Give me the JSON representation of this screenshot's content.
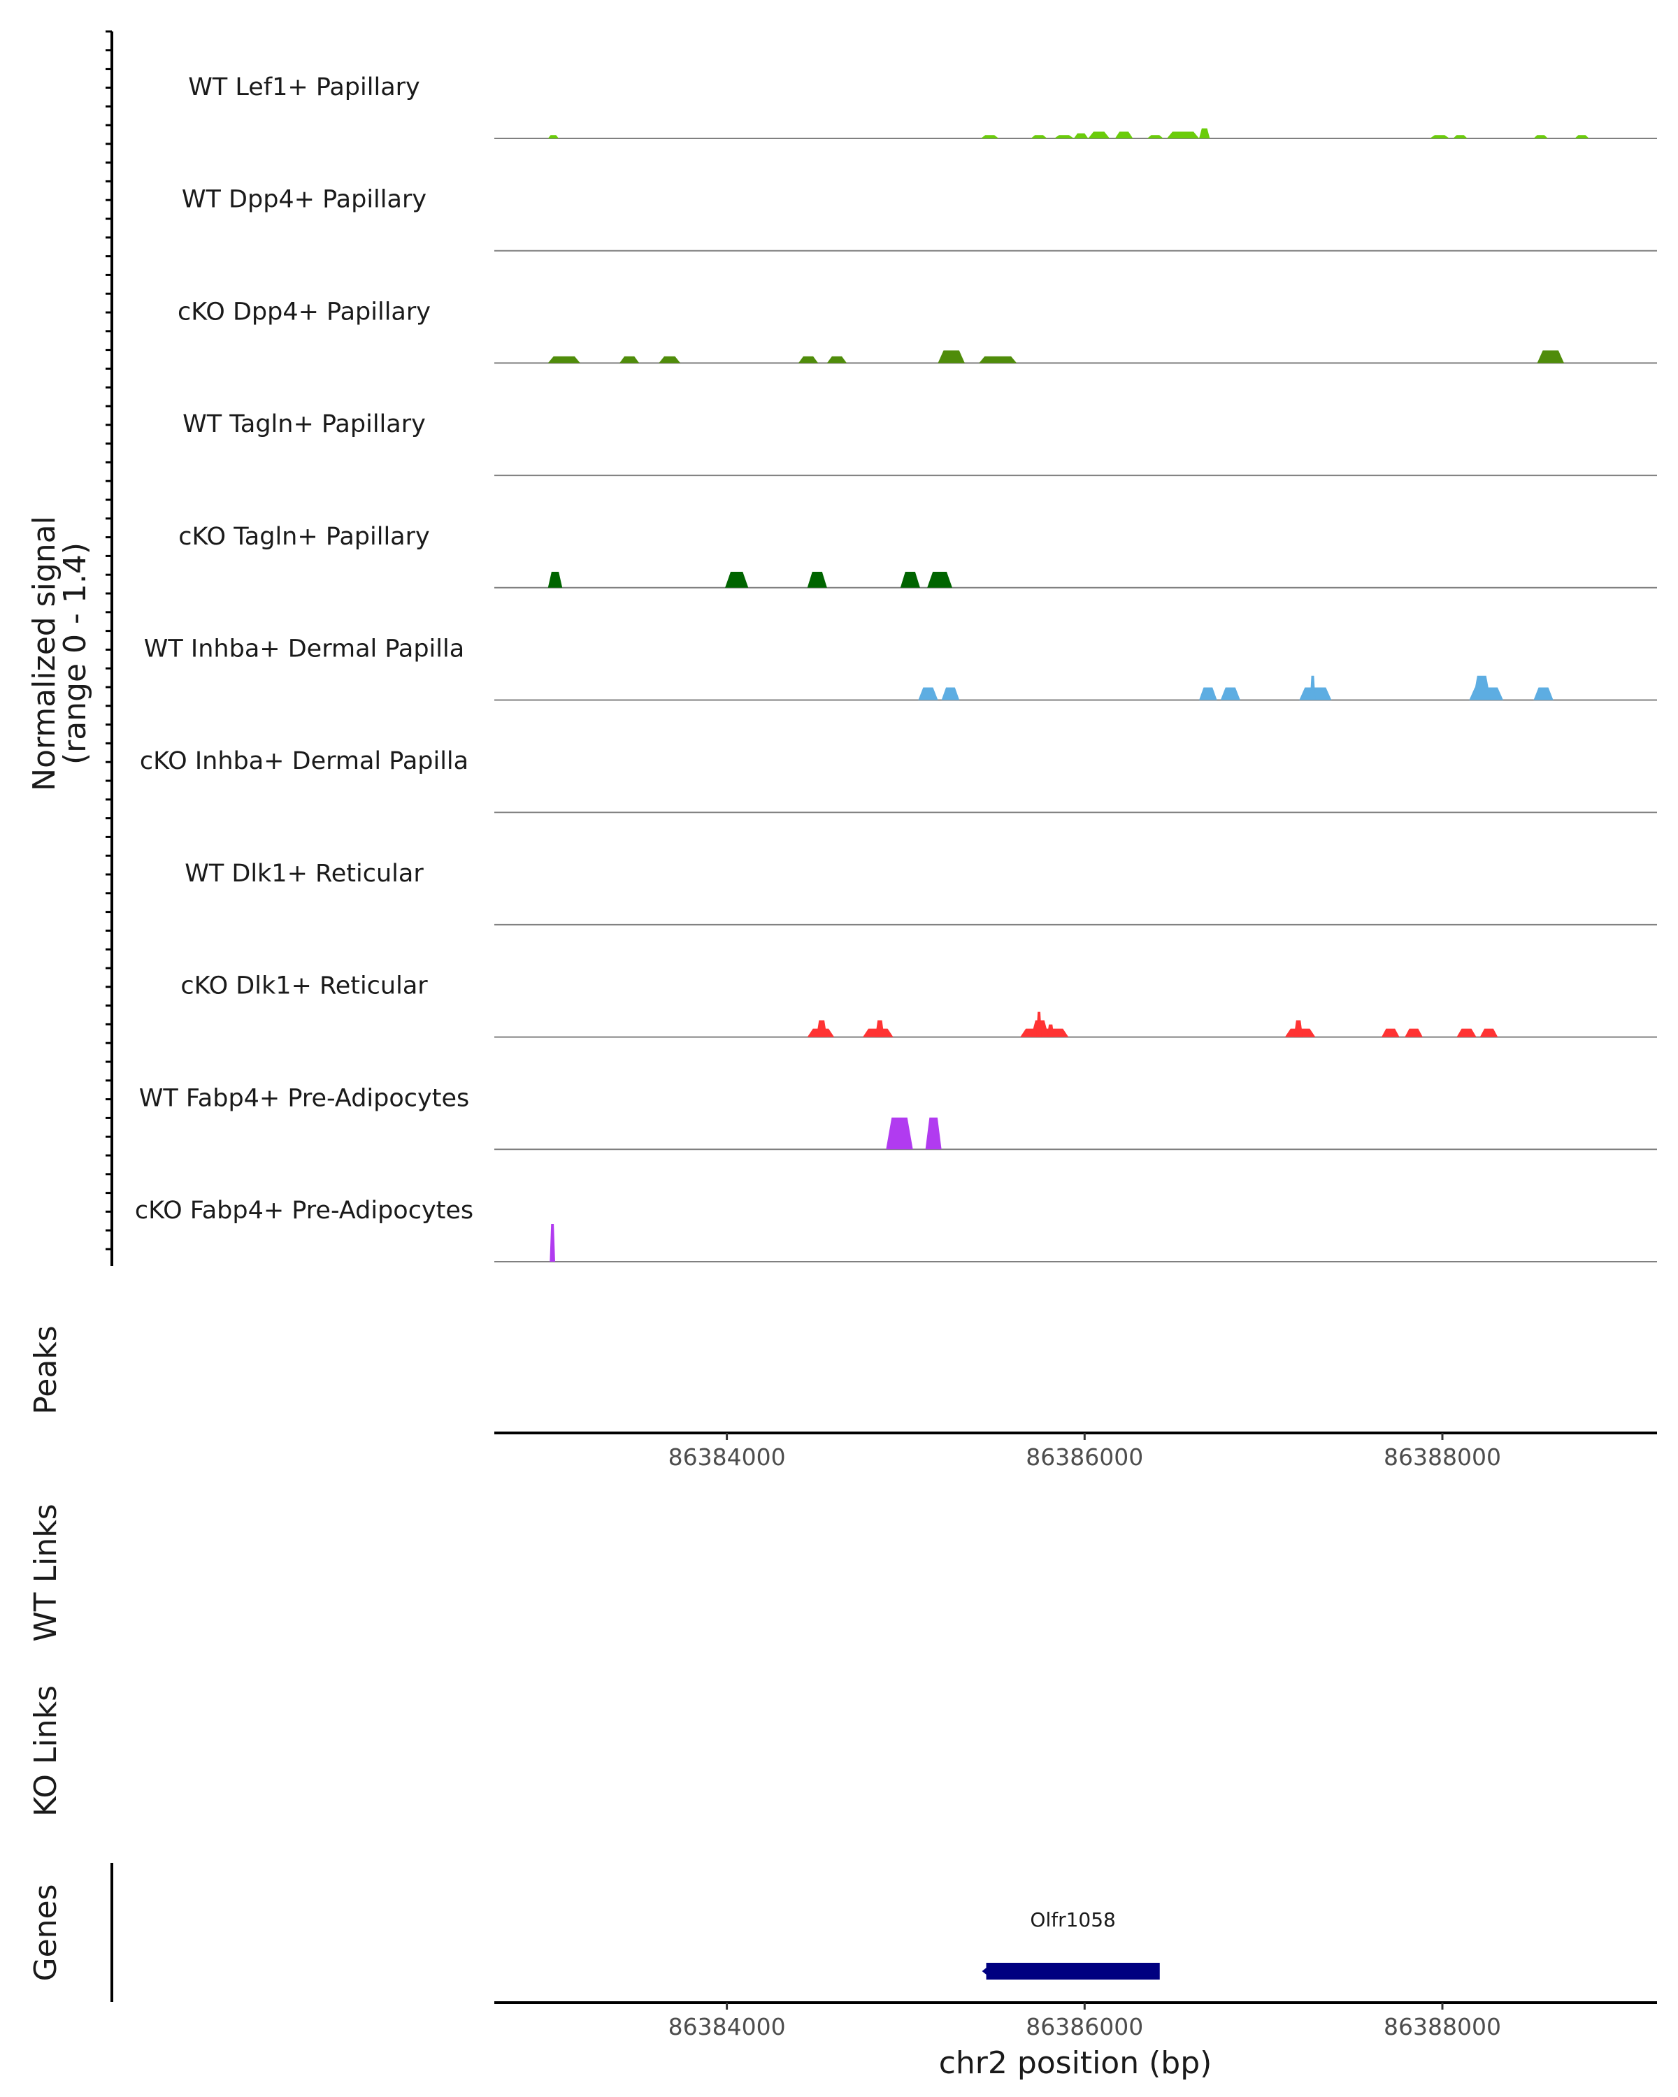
{
  "chart_data": {
    "type": "area",
    "title": "",
    "ylabel": "Normalized signal\n(range 0 - 1.4)",
    "ylim": [
      0,
      1.4
    ],
    "xlabel": "chr2 position (bp)",
    "xlim": [
      86382700,
      86389200
    ],
    "xticks": [
      86384000,
      86386000,
      86388000
    ],
    "xtick_labels": [
      "86384000",
      "86386000",
      "86388000"
    ],
    "tracks": [
      {
        "name": "WT Lef1+ Papillary",
        "color": "#6ACC0A",
        "peaks": [
          {
            "start": 86383000,
            "end": 86383060,
            "height": 0.4
          },
          {
            "start": 86385420,
            "end": 86385520,
            "height": 0.4
          },
          {
            "start": 86385700,
            "end": 86385790,
            "height": 0.4
          },
          {
            "start": 86385830,
            "end": 86385940,
            "height": 0.4
          },
          {
            "start": 86385940,
            "end": 86386020,
            "height": 0.6
          },
          {
            "start": 86386020,
            "end": 86386140,
            "height": 0.8
          },
          {
            "start": 86386170,
            "end": 86386270,
            "height": 0.8
          },
          {
            "start": 86386350,
            "end": 86386440,
            "height": 0.4
          },
          {
            "start": 86386460,
            "end": 86386640,
            "height": 0.8
          },
          {
            "start": 86386640,
            "end": 86386700,
            "height": 1.2
          },
          {
            "start": 86387930,
            "end": 86388040,
            "height": 0.4
          },
          {
            "start": 86388060,
            "end": 86388140,
            "height": 0.4
          },
          {
            "start": 86388510,
            "end": 86388590,
            "height": 0.4
          },
          {
            "start": 86388740,
            "end": 86388820,
            "height": 0.4
          }
        ]
      },
      {
        "name": "WT Dpp4+ Papillary",
        "color": "#4F8C0A",
        "peaks": []
      },
      {
        "name": "cKO Dpp4+ Papillary",
        "color": "#4F8C0A",
        "peaks": [
          {
            "start": 86383000,
            "end": 86383180,
            "height": 0.8
          },
          {
            "start": 86383400,
            "end": 86383510,
            "height": 0.8
          },
          {
            "start": 86383620,
            "end": 86383740,
            "height": 0.8
          },
          {
            "start": 86384400,
            "end": 86384510,
            "height": 0.8
          },
          {
            "start": 86384560,
            "end": 86384670,
            "height": 0.8
          },
          {
            "start": 86385180,
            "end": 86385330,
            "height": 1.5
          },
          {
            "start": 86385410,
            "end": 86385620,
            "height": 0.8
          },
          {
            "start": 86388530,
            "end": 86388680,
            "height": 1.5
          }
        ]
      },
      {
        "name": "WT Tagln+ Papillary",
        "color": "#006400",
        "peaks": []
      },
      {
        "name": "cKO Tagln+ Papillary",
        "color": "#006400",
        "peaks": [
          {
            "start": 86383000,
            "end": 86383080,
            "height": 1.9
          },
          {
            "start": 86383990,
            "end": 86384120,
            "height": 1.9
          },
          {
            "start": 86384450,
            "end": 86384560,
            "height": 1.9
          },
          {
            "start": 86384970,
            "end": 86385080,
            "height": 1.9
          },
          {
            "start": 86385120,
            "end": 86385260,
            "height": 1.9
          }
        ]
      },
      {
        "name": "WT Inhba+ Dermal Papilla",
        "color": "#5DADE2",
        "peaks": [
          {
            "start": 86385070,
            "end": 86385180,
            "height": 1.5
          },
          {
            "start": 86385200,
            "end": 86385300,
            "height": 1.5
          },
          {
            "start": 86386640,
            "end": 86386740,
            "height": 1.5
          },
          {
            "start": 86386760,
            "end": 86386870,
            "height": 1.5
          },
          {
            "start": 86387200,
            "end": 86387380,
            "height": 1.5
          },
          {
            "start": 86387260,
            "end": 86387290,
            "height": 2.9
          },
          {
            "start": 86388150,
            "end": 86388340,
            "height": 1.5
          },
          {
            "start": 86388170,
            "end": 86388270,
            "height": 2.9
          },
          {
            "start": 86388510,
            "end": 86388620,
            "height": 1.5
          }
        ]
      },
      {
        "name": "cKO Inhba+ Dermal Papilla",
        "color": "#5DADE2",
        "peaks": []
      },
      {
        "name": "WT Dlk1+ Reticular",
        "color": "#FF3333",
        "peaks": []
      },
      {
        "name": "cKO Dlk1+ Reticular",
        "color": "#FF3333",
        "peaks": [
          {
            "start": 86384450,
            "end": 86384600,
            "height": 1.0
          },
          {
            "start": 86384500,
            "end": 86384560,
            "height": 2.0
          },
          {
            "start": 86384760,
            "end": 86384930,
            "height": 1.0
          },
          {
            "start": 86384830,
            "end": 86384880,
            "height": 2.0
          },
          {
            "start": 86385640,
            "end": 86385910,
            "height": 1.0
          },
          {
            "start": 86385700,
            "end": 86385800,
            "height": 2.0
          },
          {
            "start": 86385730,
            "end": 86385760,
            "height": 3.0
          },
          {
            "start": 86385790,
            "end": 86385830,
            "height": 1.5
          },
          {
            "start": 86387120,
            "end": 86387290,
            "height": 1.0
          },
          {
            "start": 86387170,
            "end": 86387220,
            "height": 2.0
          },
          {
            "start": 86387660,
            "end": 86387760,
            "height": 1.0
          },
          {
            "start": 86387790,
            "end": 86387890,
            "height": 1.0
          },
          {
            "start": 86388080,
            "end": 86388190,
            "height": 1.0
          },
          {
            "start": 86388210,
            "end": 86388310,
            "height": 1.0
          }
        ]
      },
      {
        "name": "WT Fabp4+ Pre-Adipocytes",
        "color": "#B13BF0",
        "peaks": [
          {
            "start": 86384890,
            "end": 86385040,
            "height": 3.8
          },
          {
            "start": 86385110,
            "end": 86385200,
            "height": 3.8
          }
        ]
      },
      {
        "name": "cKO Fabp4+ Pre-Adipocytes",
        "color": "#B13BF0",
        "peaks": [
          {
            "start": 86383010,
            "end": 86383040,
            "height": 4.5
          }
        ]
      }
    ],
    "panels": [
      "Peaks",
      "WT Links",
      "KO Links",
      "Genes"
    ],
    "genes": [
      {
        "name": "Olfr1058",
        "start": 86385450,
        "end": 86386420,
        "color": "#000080"
      }
    ]
  }
}
